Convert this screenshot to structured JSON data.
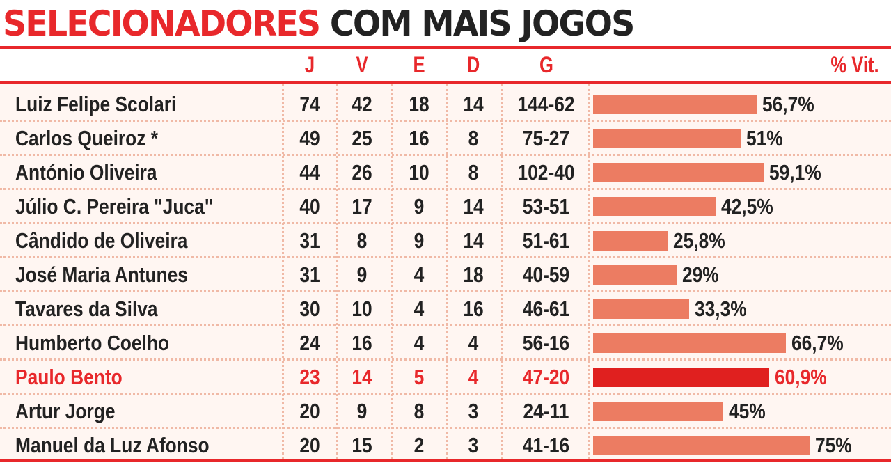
{
  "colors": {
    "accent": "#e8282b",
    "bar": "#ec7c62",
    "bar_highlight": "#e0201f",
    "text": "#222222"
  },
  "title": {
    "part1": "SELECIONADORES",
    "part2": "COM MAIS JOGOS"
  },
  "chart_data": {
    "type": "table",
    "columns": [
      "J",
      "V",
      "E",
      "D",
      "G",
      "% Vit."
    ],
    "rows": [
      {
        "name": "Luiz Felipe Scolari",
        "j": "74",
        "v": "42",
        "e": "18",
        "d": "14",
        "g": "144-62",
        "pct_label": "56,7%",
        "pct": 56.7
      },
      {
        "name": "Carlos Queiroz *",
        "j": "49",
        "v": "25",
        "e": "16",
        "d": "8",
        "g": "75-27",
        "pct_label": "51%",
        "pct": 51
      },
      {
        "name": "António Oliveira",
        "j": "44",
        "v": "26",
        "e": "10",
        "d": "8",
        "g": "102-40",
        "pct_label": "59,1%",
        "pct": 59.1
      },
      {
        "name": "Júlio C. Pereira \"Juca\"",
        "j": "40",
        "v": "17",
        "e": "9",
        "d": "14",
        "g": "53-51",
        "pct_label": "42,5%",
        "pct": 42.5
      },
      {
        "name": "Cândido de Oliveira",
        "j": "31",
        "v": "8",
        "e": "9",
        "d": "14",
        "g": "51-61",
        "pct_label": "25,8%",
        "pct": 25.8
      },
      {
        "name": "José Maria Antunes",
        "j": "31",
        "v": "9",
        "e": "4",
        "d": "18",
        "g": "40-59",
        "pct_label": "29%",
        "pct": 29
      },
      {
        "name": "Tavares da Silva",
        "j": "30",
        "v": "10",
        "e": "4",
        "d": "16",
        "g": "46-61",
        "pct_label": "33,3%",
        "pct": 33.3
      },
      {
        "name": "Humberto Coelho",
        "j": "24",
        "v": "16",
        "e": "4",
        "d": "4",
        "g": "56-16",
        "pct_label": "66,7%",
        "pct": 66.7
      },
      {
        "name": "Paulo Bento",
        "j": "23",
        "v": "14",
        "e": "5",
        "d": "4",
        "g": "47-20",
        "pct_label": "60,9%",
        "pct": 60.9,
        "highlight": true
      },
      {
        "name": "Artur Jorge",
        "j": "20",
        "v": "9",
        "e": "8",
        "d": "3",
        "g": "24-11",
        "pct_label": "45%",
        "pct": 45
      },
      {
        "name": "Manuel da Luz Afonso",
        "j": "20",
        "v": "15",
        "e": "2",
        "d": "3",
        "g": "41-16",
        "pct_label": "75%",
        "pct": 75
      }
    ]
  }
}
